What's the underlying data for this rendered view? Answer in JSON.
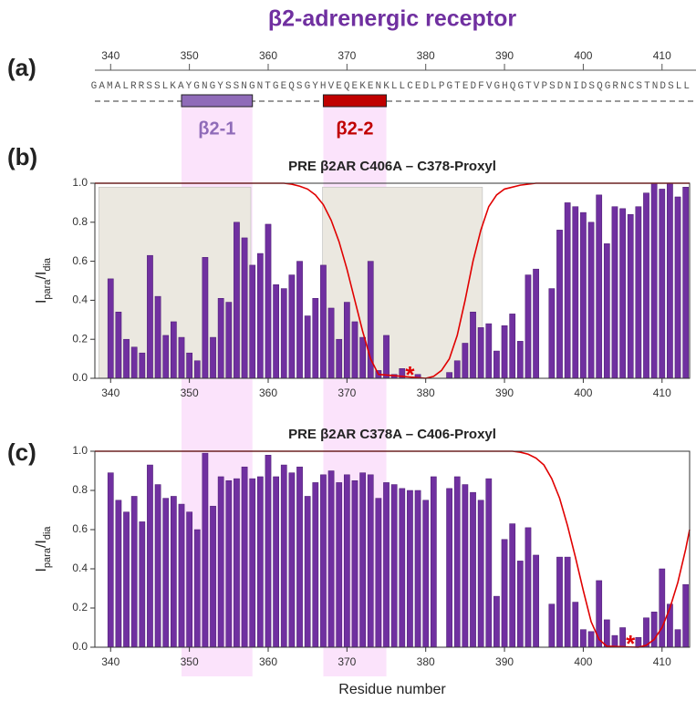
{
  "title": "β2-adrenergic receptor",
  "panel_labels": [
    "(a)",
    "(b)",
    "(c)"
  ],
  "sequence": {
    "text": "GAMALRRSSLKAYGNGYSSNGNTGEQSGYHVEQEKENKLLCEDLPGTEDFVGHQGTVPSDNIDSQGRNCSTNDSLL",
    "start": 338,
    "xticks": [
      340,
      350,
      360,
      370,
      380,
      390,
      400,
      410
    ]
  },
  "segments": [
    {
      "label": "β2-1",
      "range": [
        349,
        358
      ],
      "color": "#8f6bb8"
    },
    {
      "label": "β2-2",
      "range": [
        367,
        375
      ],
      "color": "#c00000"
    }
  ],
  "highlight_color": "#fbe3fb",
  "chart_data": [
    {
      "type": "bar",
      "title": "PRE β2AR C406A – C378-Proxyl",
      "ylabel": [
        "I",
        "para",
        "/I",
        "dia"
      ],
      "xlim": [
        338,
        413.5
      ],
      "xticks": [
        340,
        350,
        360,
        370,
        380,
        390,
        400,
        410
      ],
      "ylim": [
        0,
        1
      ],
      "yticks": [
        {
          "value": 0,
          "label": "0.0"
        },
        0.2,
        0.4,
        0.6,
        0.8,
        {
          "value": 1,
          "label": "1.0"
        }
      ],
      "shaded": {
        "color": "#ebe8e0",
        "regions": [
          {
            "x": [
              338.5,
              357.8
            ],
            "ymax": 0.98
          },
          {
            "x": [
              366.9,
              387.2
            ],
            "ymax": 0.98
          }
        ]
      },
      "marker": {
        "label": "*",
        "x": 378,
        "color": "#e00000"
      },
      "series": [
        {
          "type": "bar",
          "color": "#7030a0",
          "x": [
            340,
            341,
            342,
            343,
            344,
            345,
            346,
            347,
            348,
            349,
            350,
            351,
            352,
            353,
            354,
            355,
            356,
            357,
            358,
            359,
            360,
            361,
            362,
            363,
            364,
            365,
            366,
            367,
            368,
            369,
            370,
            371,
            372,
            373,
            374,
            375,
            376,
            377,
            378,
            379,
            380,
            381,
            382,
            383,
            384,
            385,
            386,
            387,
            388,
            389,
            390,
            391,
            392,
            393,
            394,
            395,
            396,
            397,
            398,
            399,
            400,
            401,
            402,
            403,
            404,
            405,
            406,
            407,
            408,
            409,
            410,
            411,
            412,
            413
          ],
          "values": [
            0.51,
            0.34,
            0.2,
            0.16,
            0.13,
            0.63,
            0.42,
            0.22,
            0.29,
            0.21,
            0.13,
            0.09,
            0.62,
            0.21,
            0.41,
            0.39,
            0.8,
            0.72,
            0.58,
            0.64,
            0.79,
            0.48,
            0.46,
            0.53,
            0.6,
            0.32,
            0.41,
            0.58,
            0.36,
            0.2,
            0.39,
            0.29,
            0.21,
            0.6,
            0.04,
            0.22,
            0.02,
            0.05,
            null,
            0.02,
            null,
            null,
            null,
            0.03,
            0.09,
            0.18,
            0.34,
            0.26,
            0.28,
            0.14,
            0.27,
            0.33,
            0.19,
            0.53,
            0.56,
            null,
            0.46,
            0.76,
            0.9,
            0.88,
            0.85,
            0.8,
            0.94,
            0.69,
            0.88,
            0.87,
            0.84,
            0.88,
            0.95,
            1.0,
            0.97,
            1.0,
            0.93,
            0.98
          ]
        },
        {
          "type": "line",
          "color": "#e00000",
          "x": [
            338,
            362,
            363,
            364,
            365,
            366,
            367,
            368,
            369,
            370,
            371,
            372,
            373,
            374,
            380,
            381,
            382,
            383,
            384,
            385,
            386,
            387,
            388,
            389,
            390,
            392,
            394,
            413.5
          ],
          "values": [
            1,
            1,
            0.995,
            0.985,
            0.97,
            0.94,
            0.89,
            0.81,
            0.7,
            0.56,
            0.4,
            0.24,
            0.1,
            0.02,
            0,
            0.01,
            0.04,
            0.1,
            0.22,
            0.4,
            0.6,
            0.76,
            0.88,
            0.94,
            0.97,
            0.99,
            1,
            1
          ]
        }
      ]
    },
    {
      "type": "bar",
      "title": "PRE β2AR C378A – C406-Proxyl",
      "ylabel": [
        "I",
        "para",
        "/I",
        "dia"
      ],
      "xlabel": "Residue number",
      "xlim": [
        338,
        413.5
      ],
      "xticks": [
        340,
        350,
        360,
        370,
        380,
        390,
        400,
        410
      ],
      "ylim": [
        0,
        1
      ],
      "yticks": [
        {
          "value": 0,
          "label": "0.0"
        },
        0.2,
        0.4,
        0.6,
        0.8,
        {
          "value": 1,
          "label": "1.0"
        }
      ],
      "marker": {
        "label": "*",
        "x": 406,
        "color": "#e00000"
      },
      "series": [
        {
          "type": "bar",
          "color": "#7030a0",
          "x": [
            340,
            341,
            342,
            343,
            344,
            345,
            346,
            347,
            348,
            349,
            350,
            351,
            352,
            353,
            354,
            355,
            356,
            357,
            358,
            359,
            360,
            361,
            362,
            363,
            364,
            365,
            366,
            367,
            368,
            369,
            370,
            371,
            372,
            373,
            374,
            375,
            376,
            377,
            378,
            379,
            380,
            381,
            382,
            383,
            384,
            385,
            386,
            387,
            388,
            389,
            390,
            391,
            392,
            393,
            394,
            395,
            396,
            397,
            398,
            399,
            400,
            401,
            402,
            403,
            404,
            405,
            406,
            407,
            408,
            409,
            410,
            411,
            412,
            413
          ],
          "values": [
            0.89,
            0.75,
            0.69,
            0.77,
            0.64,
            0.93,
            0.83,
            0.76,
            0.77,
            0.73,
            0.69,
            0.6,
            0.99,
            0.72,
            0.87,
            0.85,
            0.86,
            0.92,
            0.86,
            0.87,
            0.98,
            0.87,
            0.93,
            0.89,
            0.92,
            0.77,
            0.84,
            0.88,
            0.9,
            0.84,
            0.88,
            0.85,
            0.89,
            0.88,
            0.76,
            0.84,
            0.83,
            0.81,
            0.8,
            0.8,
            0.75,
            0.87,
            null,
            0.81,
            0.87,
            0.83,
            0.79,
            0.75,
            0.86,
            0.26,
            0.55,
            0.63,
            0.44,
            0.61,
            0.47,
            null,
            0.22,
            0.46,
            0.46,
            0.23,
            0.09,
            0.08,
            0.34,
            0.14,
            0.06,
            0.1,
            null,
            0.05,
            0.15,
            0.18,
            0.4,
            0.22,
            0.09,
            0.32
          ]
        },
        {
          "type": "line",
          "color": "#e00000",
          "x": [
            338,
            391,
            392,
            393,
            394,
            395,
            396,
            397,
            398,
            399,
            400,
            401,
            402,
            403,
            407,
            408,
            409,
            410,
            411,
            412,
            413,
            413.5
          ],
          "values": [
            1,
            1,
            0.995,
            0.985,
            0.965,
            0.93,
            0.86,
            0.76,
            0.62,
            0.46,
            0.29,
            0.13,
            0.04,
            0.005,
            0,
            0.01,
            0.04,
            0.1,
            0.2,
            0.33,
            0.5,
            0.6
          ]
        }
      ]
    }
  ]
}
